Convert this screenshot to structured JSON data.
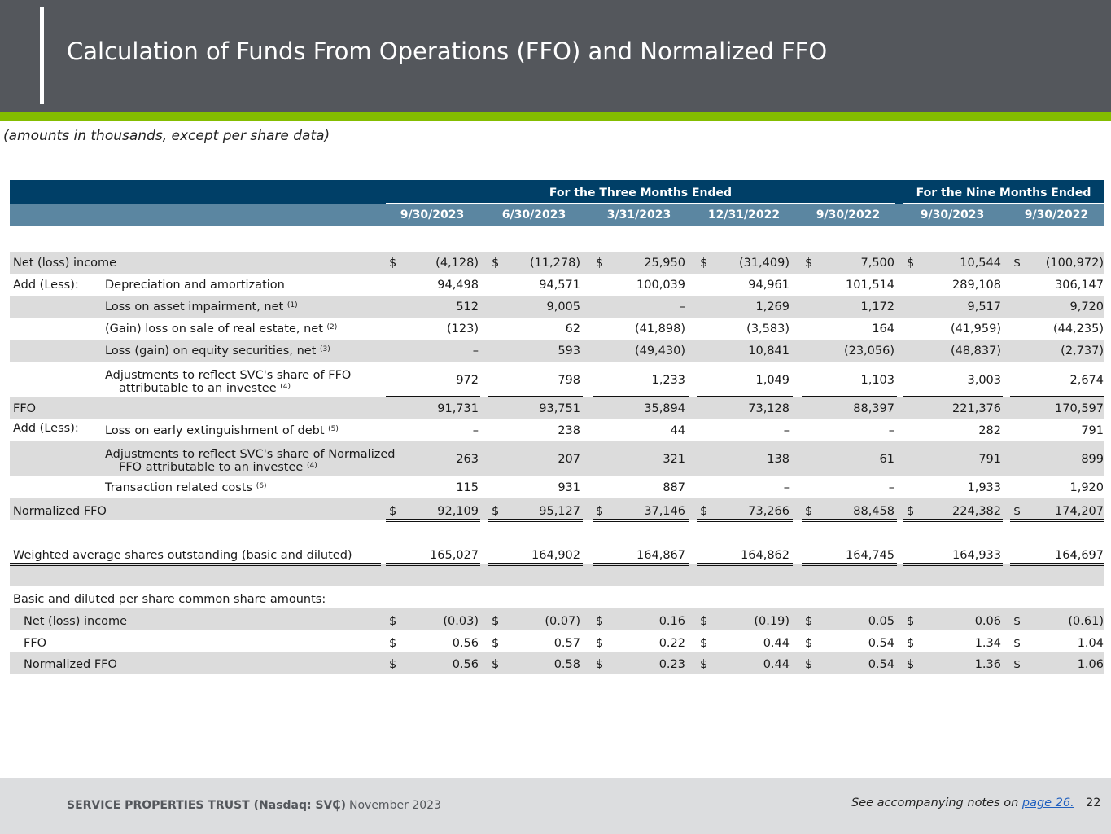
{
  "header": {
    "title": "Calculation of Funds From Operations (FFO) and Normalized FFO",
    "accent_color": "#84bd00",
    "background_color": "#54575c"
  },
  "subtitle": "(amounts in thousands, except per share data)",
  "table": {
    "group_three_months": "For the Three Months Ended",
    "group_nine_months": "For the Nine Months Ended",
    "columns": [
      "9/30/2023",
      "6/30/2023",
      "3/31/2023",
      "12/31/2022",
      "9/30/2022",
      "9/30/2023",
      "9/30/2022"
    ],
    "add_less_label": "Add (Less):",
    "rows": [
      {
        "label": "Net (loss) income",
        "sublabel": "",
        "currency": true,
        "values": [
          "(4,128)",
          "(11,278)",
          "25,950",
          "(31,409)",
          "7,500",
          "10,544",
          "(100,972)"
        ]
      },
      {
        "label": "Depreciation and amortization",
        "sublabel": "",
        "currency": false,
        "values": [
          "94,498",
          "94,571",
          "100,039",
          "94,961",
          "101,514",
          "289,108",
          "306,147"
        ]
      },
      {
        "label": "Loss on asset impairment, net",
        "note": "(1)",
        "currency": false,
        "values": [
          "512",
          "9,005",
          "–",
          "1,269",
          "1,172",
          "9,517",
          "9,720"
        ]
      },
      {
        "label": "(Gain) loss on sale of real estate, net",
        "note": "(2)",
        "currency": false,
        "values": [
          "(123)",
          "62",
          "(41,898)",
          "(3,583)",
          "164",
          "(41,959)",
          "(44,235)"
        ]
      },
      {
        "label": "Loss (gain) on equity securities, net",
        "note": "(3)",
        "currency": false,
        "values": [
          "–",
          "593",
          "(49,430)",
          "10,841",
          "(23,056)",
          "(48,837)",
          "(2,737)"
        ]
      },
      {
        "label": "Adjustments to reflect SVC's share of FFO",
        "sublabel": "attributable to an investee",
        "note": "(4)",
        "currency": false,
        "values": [
          "972",
          "798",
          "1,233",
          "1,049",
          "1,103",
          "3,003",
          "2,674"
        ]
      },
      {
        "label": "FFO",
        "currency": false,
        "values": [
          "91,731",
          "93,751",
          "35,894",
          "73,128",
          "88,397",
          "221,376",
          "170,597"
        ]
      },
      {
        "label": "Loss on early extinguishment of debt",
        "note": "(5)",
        "currency": false,
        "values": [
          "–",
          "238",
          "44",
          "–",
          "–",
          "282",
          "791"
        ]
      },
      {
        "label": "Adjustments to reflect SVC's share of Normalized",
        "sublabel": "FFO attributable to an investee",
        "note": "(4)",
        "currency": false,
        "values": [
          "263",
          "207",
          "321",
          "138",
          "61",
          "791",
          "899"
        ]
      },
      {
        "label": "Transaction related costs",
        "note": "(6)",
        "currency": false,
        "values": [
          "115",
          "931",
          "887",
          "–",
          "–",
          "1,933",
          "1,920"
        ]
      },
      {
        "label": "Normalized FFO",
        "currency": true,
        "values": [
          "92,109",
          "95,127",
          "37,146",
          "73,266",
          "88,458",
          "224,382",
          "174,207"
        ]
      },
      {
        "label": "Weighted average shares outstanding (basic and diluted)",
        "currency": false,
        "values": [
          "165,027",
          "164,902",
          "164,867",
          "164,862",
          "164,745",
          "164,933",
          "164,697"
        ]
      },
      {
        "label": "Basic and diluted per share common share amounts:"
      },
      {
        "label": "Net (loss) income",
        "currency": true,
        "values": [
          "(0.03)",
          "(0.07)",
          "0.16",
          "(0.19)",
          "0.05",
          "0.06",
          "(0.61)"
        ]
      },
      {
        "label": "FFO",
        "currency": true,
        "values": [
          "0.56",
          "0.57",
          "0.22",
          "0.44",
          "0.54",
          "1.34",
          "1.04"
        ]
      },
      {
        "label": "Normalized FFO",
        "currency": true,
        "values": [
          "0.56",
          "0.58",
          "0.23",
          "0.44",
          "0.54",
          "1.36",
          "1.06"
        ]
      }
    ],
    "currency_symbol": "$"
  },
  "footer": {
    "company": "SERVICE PROPERTIES TRUST (Nasdaq: SVC)",
    "separator": "|",
    "date": "November 2023",
    "note_prefix": "See accompanying notes on ",
    "note_link": "page 26.",
    "page_number": "22"
  }
}
